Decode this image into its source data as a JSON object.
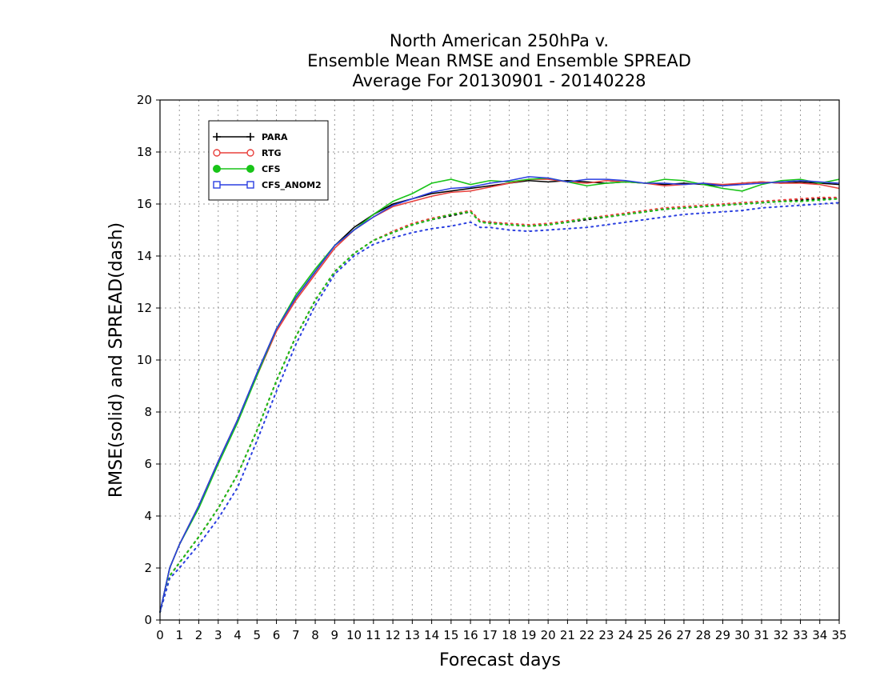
{
  "chart_data": {
    "type": "line",
    "title": [
      "North American 250hPa v.",
      "Ensemble Mean RMSE and Ensemble SPREAD",
      "Average For 20130901 - 20140228"
    ],
    "xlabel": "Forecast days",
    "ylabel": "RMSE(solid) and SPREAD(dash)",
    "xlim": [
      0,
      35
    ],
    "ylim": [
      0,
      20
    ],
    "xticks": [
      0,
      1,
      2,
      3,
      4,
      5,
      6,
      7,
      8,
      9,
      10,
      11,
      12,
      13,
      14,
      15,
      16,
      17,
      18,
      19,
      20,
      21,
      22,
      23,
      24,
      25,
      26,
      27,
      28,
      29,
      30,
      31,
      32,
      33,
      34,
      35
    ],
    "yticks": [
      0,
      2,
      4,
      6,
      8,
      10,
      12,
      14,
      16,
      18,
      20
    ],
    "grid": true,
    "legend_position": "top-left",
    "series": [
      {
        "name": "PARA",
        "color": "#000000",
        "marker": "plus",
        "rmse": {
          "x": [
            0,
            0.5,
            1,
            2,
            3,
            4,
            5,
            6,
            7,
            8,
            9,
            10,
            11,
            12,
            13,
            14,
            15,
            16,
            17,
            18,
            19,
            20,
            21,
            22,
            23,
            24,
            25,
            26,
            27,
            28,
            29,
            30,
            31,
            32,
            33,
            34,
            35
          ],
          "y": [
            0.3,
            2.0,
            2.9,
            4.4,
            6.1,
            7.7,
            9.5,
            11.2,
            12.4,
            13.4,
            14.4,
            15.1,
            15.6,
            16.0,
            16.2,
            16.4,
            16.5,
            16.6,
            16.7,
            16.8,
            16.9,
            16.85,
            16.9,
            16.85,
            16.8,
            16.85,
            16.8,
            16.75,
            16.8,
            16.75,
            16.7,
            16.8,
            16.85,
            16.8,
            16.85,
            16.8,
            16.75
          ]
        },
        "spread": {
          "x": [
            0,
            0.5,
            1,
            2,
            3,
            4,
            5,
            6,
            7,
            8,
            9,
            10,
            11,
            12,
            13,
            14,
            15,
            16,
            16.5,
            17,
            18,
            19,
            20,
            21,
            22,
            23,
            24,
            25,
            26,
            27,
            28,
            29,
            30,
            31,
            32,
            33,
            34,
            35
          ],
          "y": [
            0.3,
            1.7,
            2.2,
            3.2,
            4.3,
            5.6,
            7.3,
            9.2,
            10.9,
            12.3,
            13.4,
            14.1,
            14.6,
            14.9,
            15.2,
            15.4,
            15.55,
            15.7,
            15.3,
            15.3,
            15.2,
            15.15,
            15.2,
            15.3,
            15.4,
            15.5,
            15.6,
            15.7,
            15.8,
            15.85,
            15.9,
            15.95,
            16.0,
            16.05,
            16.1,
            16.15,
            16.2,
            16.2
          ]
        }
      },
      {
        "name": "RTG",
        "color": "#e8403c",
        "marker": "circle-open",
        "rmse": {
          "x": [
            0,
            0.5,
            1,
            2,
            3,
            4,
            5,
            6,
            7,
            8,
            9,
            10,
            11,
            12,
            13,
            14,
            15,
            16,
            17,
            18,
            19,
            20,
            21,
            22,
            23,
            24,
            25,
            26,
            27,
            28,
            29,
            30,
            31,
            32,
            33,
            34,
            35
          ],
          "y": [
            0.3,
            2.0,
            2.9,
            4.4,
            6.1,
            7.7,
            9.4,
            11.1,
            12.3,
            13.3,
            14.3,
            15.0,
            15.5,
            15.9,
            16.1,
            16.3,
            16.45,
            16.5,
            16.65,
            16.8,
            16.95,
            16.95,
            16.85,
            16.8,
            16.9,
            16.85,
            16.8,
            16.7,
            16.75,
            16.8,
            16.75,
            16.8,
            16.85,
            16.8,
            16.8,
            16.75,
            16.6
          ]
        },
        "spread": {
          "x": [
            0,
            0.5,
            1,
            2,
            3,
            4,
            5,
            6,
            7,
            8,
            9,
            10,
            11,
            12,
            13,
            14,
            15,
            16,
            16.5,
            17,
            18,
            19,
            20,
            21,
            22,
            23,
            24,
            25,
            26,
            27,
            28,
            29,
            30,
            31,
            32,
            33,
            34,
            35
          ],
          "y": [
            0.3,
            1.7,
            2.2,
            3.2,
            4.3,
            5.6,
            7.3,
            9.2,
            10.9,
            12.3,
            13.4,
            14.1,
            14.6,
            14.95,
            15.25,
            15.45,
            15.6,
            15.75,
            15.35,
            15.3,
            15.25,
            15.2,
            15.25,
            15.35,
            15.45,
            15.55,
            15.65,
            15.75,
            15.85,
            15.9,
            15.95,
            16.0,
            16.05,
            16.1,
            16.15,
            16.2,
            16.25,
            16.25
          ]
        }
      },
      {
        "name": "CFS",
        "color": "#18c418",
        "marker": "circle-filled",
        "rmse": {
          "x": [
            0,
            0.5,
            1,
            2,
            3,
            4,
            5,
            6,
            7,
            8,
            9,
            10,
            11,
            12,
            13,
            14,
            15,
            16,
            17,
            18,
            19,
            20,
            21,
            22,
            23,
            24,
            25,
            26,
            27,
            28,
            29,
            30,
            31,
            32,
            33,
            34,
            35
          ],
          "y": [
            0.3,
            2.0,
            2.9,
            4.3,
            6.0,
            7.6,
            9.4,
            11.2,
            12.5,
            13.5,
            14.4,
            15.0,
            15.6,
            16.1,
            16.4,
            16.8,
            16.95,
            16.75,
            16.9,
            16.85,
            16.95,
            17.0,
            16.85,
            16.7,
            16.8,
            16.85,
            16.8,
            16.95,
            16.9,
            16.75,
            16.6,
            16.5,
            16.75,
            16.9,
            16.95,
            16.8,
            16.95
          ]
        },
        "spread": {
          "x": [
            0,
            0.5,
            1,
            2,
            3,
            4,
            5,
            6,
            7,
            8,
            9,
            10,
            11,
            12,
            13,
            14,
            15,
            16,
            16.5,
            17,
            18,
            19,
            20,
            21,
            22,
            23,
            24,
            25,
            26,
            27,
            28,
            29,
            30,
            31,
            32,
            33,
            34,
            35
          ],
          "y": [
            0.3,
            1.7,
            2.2,
            3.2,
            4.3,
            5.6,
            7.3,
            9.2,
            10.9,
            12.3,
            13.4,
            14.1,
            14.6,
            14.9,
            15.2,
            15.4,
            15.6,
            15.7,
            15.3,
            15.25,
            15.2,
            15.15,
            15.2,
            15.3,
            15.45,
            15.5,
            15.6,
            15.7,
            15.8,
            15.85,
            15.9,
            15.95,
            16.0,
            16.05,
            16.1,
            16.1,
            16.15,
            16.2
          ]
        }
      },
      {
        "name": "CFS_ANOM2",
        "color": "#2a3fe0",
        "marker": "square-open",
        "rmse": {
          "x": [
            0,
            0.5,
            1,
            2,
            3,
            4,
            5,
            6,
            7,
            8,
            9,
            10,
            11,
            12,
            13,
            14,
            15,
            16,
            17,
            18,
            19,
            20,
            21,
            22,
            23,
            24,
            25,
            26,
            27,
            28,
            29,
            30,
            31,
            32,
            33,
            34,
            35
          ],
          "y": [
            0.3,
            2.0,
            2.9,
            4.4,
            6.1,
            7.7,
            9.5,
            11.2,
            12.4,
            13.4,
            14.4,
            15.0,
            15.5,
            15.95,
            16.2,
            16.45,
            16.6,
            16.65,
            16.8,
            16.9,
            17.05,
            17.0,
            16.85,
            16.95,
            16.95,
            16.9,
            16.8,
            16.8,
            16.75,
            16.8,
            16.7,
            16.75,
            16.8,
            16.85,
            16.9,
            16.85,
            16.8
          ]
        },
        "spread": {
          "x": [
            0,
            0.5,
            1,
            2,
            3,
            4,
            5,
            6,
            7,
            8,
            9,
            10,
            11,
            12,
            13,
            14,
            15,
            16,
            16.5,
            17,
            18,
            19,
            20,
            21,
            22,
            23,
            24,
            25,
            26,
            27,
            28,
            29,
            30,
            31,
            32,
            33,
            34,
            35
          ],
          "y": [
            0.3,
            1.6,
            2.0,
            2.9,
            3.9,
            5.1,
            6.9,
            8.8,
            10.6,
            12.1,
            13.3,
            14.0,
            14.45,
            14.7,
            14.9,
            15.05,
            15.15,
            15.3,
            15.1,
            15.1,
            15.0,
            14.95,
            15.0,
            15.05,
            15.1,
            15.2,
            15.3,
            15.4,
            15.5,
            15.6,
            15.65,
            15.7,
            15.75,
            15.85,
            15.9,
            15.95,
            16.0,
            16.05
          ]
        }
      }
    ]
  }
}
